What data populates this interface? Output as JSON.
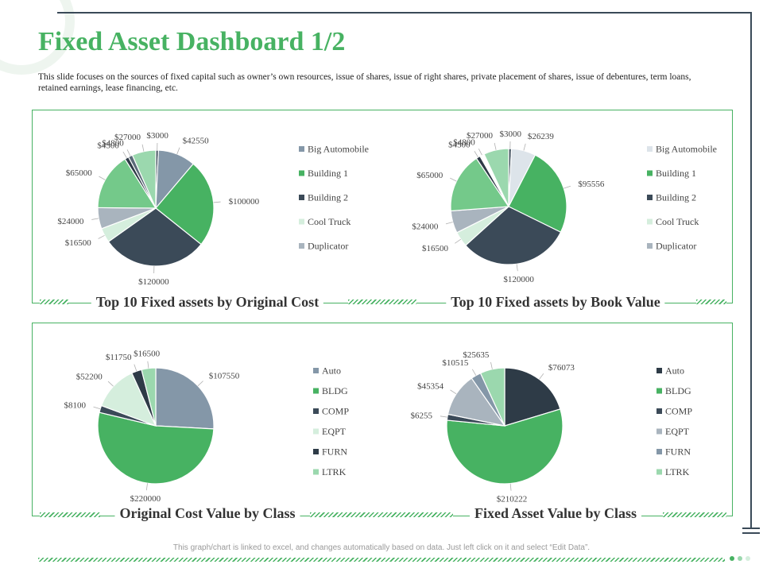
{
  "title": "Fixed Asset Dashboard 1/2",
  "subtitle": "This slide focuses on the sources of fixed capital such as owner’s own resources, issue of shares, issue of right shares, private placement of shares, issue of debentures, term loans, retained earnings, lease financing, etc.",
  "footer": "This graph/chart is linked to excel, and changes automatically based on data. Just left click on it and select “Edit Data”.",
  "colors": {
    "accent": "#47b262",
    "dark_frame": "#3a4a58"
  },
  "chart_data": [
    {
      "type": "pie",
      "title": "Top 10 Fixed assets by Original Cost",
      "slices": [
        {
          "value": 3000,
          "label": "$3000",
          "color": "#3b4a58"
        },
        {
          "value": 42550,
          "label": "$42550",
          "color": "#8497a8"
        },
        {
          "value": 100000,
          "label": "$100000",
          "color": "#47b262"
        },
        {
          "value": 120000,
          "label": "$120000",
          "color": "#3b4a58"
        },
        {
          "value": 16500,
          "label": "$16500",
          "color": "#d5eedd"
        },
        {
          "value": 24000,
          "label": "$24000",
          "color": "#a9b4be"
        },
        {
          "value": 65000,
          "label": "$65000",
          "color": "#74c98a"
        },
        {
          "value": 4500,
          "label": "$4500",
          "color": "#2e3b47"
        },
        {
          "value": 4800,
          "label": "$4800",
          "color": "#5a6a78"
        },
        {
          "value": 27000,
          "label": "$27000",
          "color": "#9bd8ae"
        }
      ],
      "legend": [
        {
          "label": "Big Automobile",
          "color": "#8497a8"
        },
        {
          "label": "Building 1",
          "color": "#47b262"
        },
        {
          "label": "Building 2",
          "color": "#3b4a58"
        },
        {
          "label": "Cool Truck",
          "color": "#d5eedd"
        },
        {
          "label": "Duplicator",
          "color": "#a9b4be"
        }
      ]
    },
    {
      "type": "pie",
      "title": "Top 10 Fixed assets by Book Value",
      "slices": [
        {
          "value": 3000,
          "label": "$3000",
          "color": "#3b4a58"
        },
        {
          "value": 26239,
          "label": "$26239",
          "color": "#dde4ea"
        },
        {
          "value": 95556,
          "label": "$95556",
          "color": "#47b262"
        },
        {
          "value": 120000,
          "label": "$120000",
          "color": "#3b4a58"
        },
        {
          "value": 16500,
          "label": "$16500",
          "color": "#d5eedd"
        },
        {
          "value": 24000,
          "label": "$24000",
          "color": "#a9b4be"
        },
        {
          "value": 65000,
          "label": "$65000",
          "color": "#74c98a"
        },
        {
          "value": 4500,
          "label": "$4500",
          "color": "#2e3b47"
        },
        {
          "value": 4800,
          "label": "$4800",
          "color": "#ffffff"
        },
        {
          "value": 27000,
          "label": "$27000",
          "color": "#9bd8ae"
        }
      ],
      "legend": [
        {
          "label": "Big Automobile",
          "color": "#dde4ea"
        },
        {
          "label": "Building 1",
          "color": "#47b262"
        },
        {
          "label": "Building 2",
          "color": "#3b4a58"
        },
        {
          "label": "Cool Truck",
          "color": "#d5eedd"
        },
        {
          "label": "Duplicator",
          "color": "#a9b4be"
        }
      ]
    },
    {
      "type": "pie",
      "title": "Original Cost Value by Class",
      "slices": [
        {
          "value": 107550,
          "label": "$107550",
          "color": "#8497a8"
        },
        {
          "value": 220000,
          "label": "$220000",
          "color": "#47b262"
        },
        {
          "value": 8100,
          "label": "$8100",
          "color": "#3b4a58"
        },
        {
          "value": 52200,
          "label": "$52200",
          "color": "#d5eedd"
        },
        {
          "value": 11750,
          "label": "$11750",
          "color": "#2e3b47"
        },
        {
          "value": 16500,
          "label": "$16500",
          "color": "#9bd8ae"
        }
      ],
      "legend": [
        {
          "label": "Auto",
          "color": "#8497a8"
        },
        {
          "label": "BLDG",
          "color": "#47b262"
        },
        {
          "label": "COMP",
          "color": "#3b4a58"
        },
        {
          "label": "EQPT",
          "color": "#d5eedd"
        },
        {
          "label": "FURN",
          "color": "#2e3b47"
        },
        {
          "label": "LTRK",
          "color": "#9bd8ae"
        }
      ]
    },
    {
      "type": "pie",
      "title": "Fixed Asset Value by Class",
      "slices": [
        {
          "value": 76073,
          "label": "$76073",
          "color": "#2e3b47"
        },
        {
          "value": 210222,
          "label": "$210222",
          "color": "#47b262"
        },
        {
          "value": 6255,
          "label": "$6255",
          "color": "#3b4a58"
        },
        {
          "value": 45354,
          "label": "$45354",
          "color": "#a9b4be"
        },
        {
          "value": 10515,
          "label": "$10515",
          "color": "#8497a8"
        },
        {
          "value": 25635,
          "label": "$25635",
          "color": "#9bd8ae"
        }
      ],
      "legend": [
        {
          "label": "Auto",
          "color": "#2e3b47"
        },
        {
          "label": "BLDG",
          "color": "#47b262"
        },
        {
          "label": "COMP",
          "color": "#3b4a58"
        },
        {
          "label": "EQPT",
          "color": "#a9b4be"
        },
        {
          "label": "FURN",
          "color": "#8497a8"
        },
        {
          "label": "LTRK",
          "color": "#9bd8ae"
        }
      ]
    }
  ]
}
